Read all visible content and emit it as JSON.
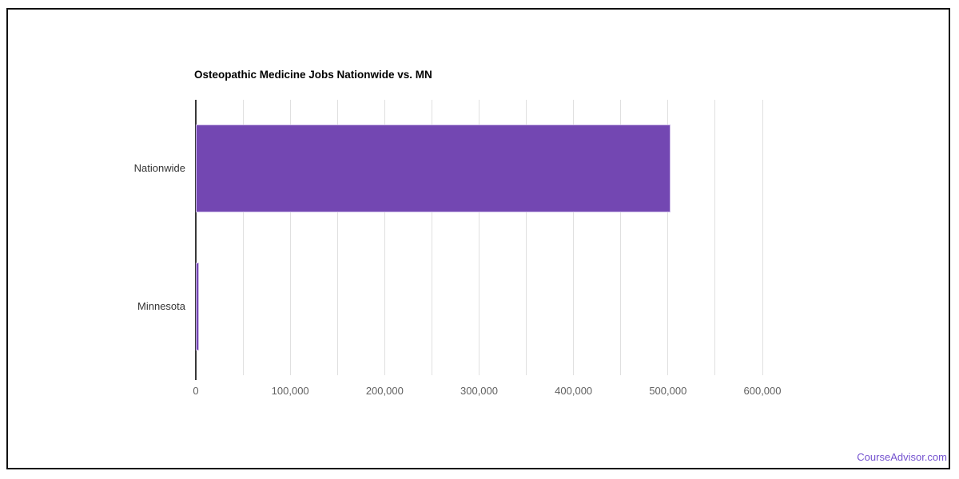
{
  "page": {
    "background": "#ffffff",
    "frame_border_color": "#111111"
  },
  "footer": {
    "brand": "CourseAdvisor.com",
    "color": "#7452cf"
  },
  "chart_data": {
    "type": "bar",
    "orientation": "horizontal",
    "title": "Osteopathic Medicine Jobs Nationwide vs. MN",
    "categories": [
      "Nationwide",
      "Minnesota"
    ],
    "values": [
      503000,
      3000
    ],
    "xlabel": "",
    "ylabel": "",
    "xlim": [
      0,
      622000
    ],
    "x_major_ticks": [
      0,
      100000,
      200000,
      300000,
      400000,
      500000,
      600000
    ],
    "x_tick_labels": [
      "0",
      "100,000",
      "200,000",
      "300,000",
      "400,000",
      "500,000",
      "600,000"
    ],
    "x_minor_step": 50000,
    "grid": "vertical-only",
    "legend": "none",
    "bar_color": "#7347b2",
    "bar_border_color": "#cdbbe9",
    "gridline_color": "#e0e0e0",
    "axis_line_color": "#383838",
    "tick_label_color": "#616161",
    "category_label_color": "#333333",
    "title_color": "#000000"
  }
}
